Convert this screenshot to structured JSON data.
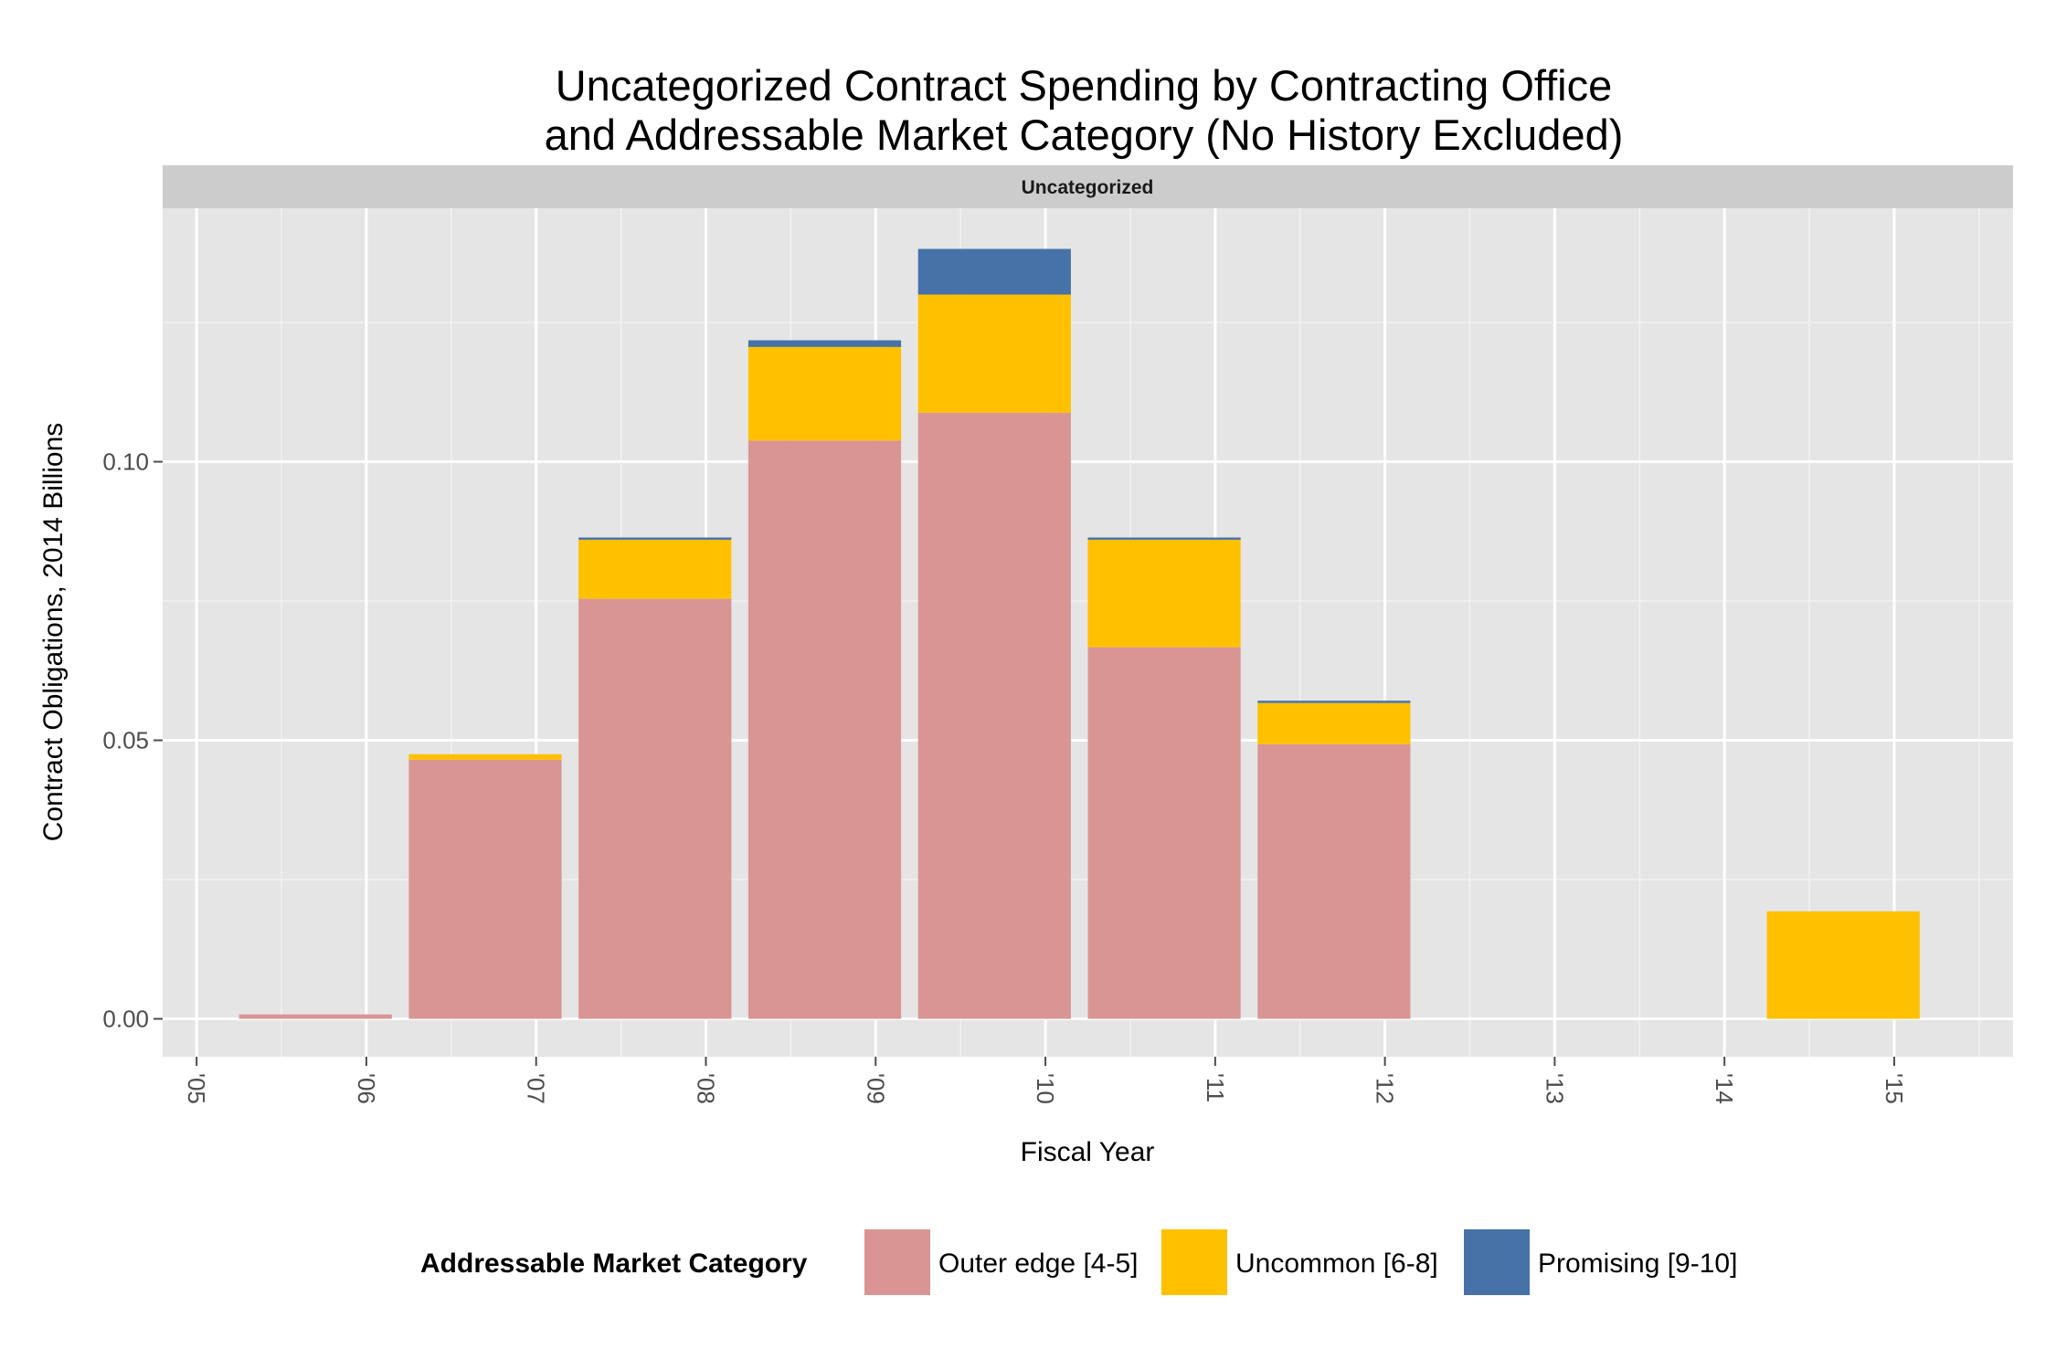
{
  "chart_data": {
    "type": "bar",
    "stacked": true,
    "title_line1": "Uncategorized Contract Spending by Contracting Office",
    "title_line2": "and Addressable Market Category (No History Excluded)",
    "facet": "Uncategorized",
    "xlabel": "Fiscal Year",
    "ylabel": "Contract Obligations, 2014 Billions",
    "x_ticks": [
      "'05",
      "'06",
      "'07",
      "'08",
      "'09",
      "'10",
      "'11",
      "'12",
      "'13",
      "'14",
      "'15"
    ],
    "x_range": [
      2004.8,
      2015.7
    ],
    "y_ticks": [
      0.0,
      0.05,
      0.1
    ],
    "y_tick_labels": [
      "0.00",
      "0.05",
      "0.10"
    ],
    "ylim": [
      -0.0068,
      0.1455
    ],
    "grid": true,
    "legend_position": "bottom",
    "legend_title": "Addressable Market Category",
    "x": [
      2005.7,
      2006.7,
      2007.7,
      2008.7,
      2009.7,
      2010.7,
      2011.7,
      2014.7
    ],
    "series": [
      {
        "name": "Outer edge [4-5]",
        "color": "#d99594",
        "values": [
          0.0008,
          0.0465,
          0.0754,
          0.1038,
          0.1088,
          0.0667,
          0.0493,
          0.0
        ]
      },
      {
        "name": "Uncommon [6-8]",
        "color": "#ffc000",
        "values": [
          0.0,
          0.001,
          0.0106,
          0.0168,
          0.0212,
          0.0193,
          0.0074,
          0.0193
        ]
      },
      {
        "name": "Promising [9-10]",
        "color": "#4672a8",
        "values": [
          0.0,
          0.0,
          0.0004,
          0.0012,
          0.0082,
          0.0004,
          0.0004,
          0.0
        ]
      }
    ]
  }
}
